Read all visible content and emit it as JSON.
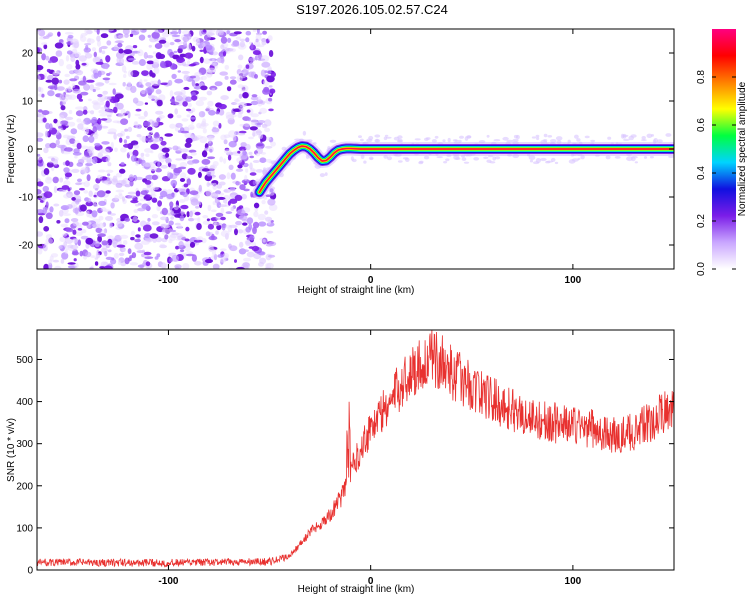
{
  "title": "S197.2026.105.02.57.C24",
  "chart_data": [
    {
      "type": "heatmap",
      "xlabel": "Height of straight line (km)",
      "ylabel": "Frequency (Hz)",
      "xlim": [
        -165,
        150
      ],
      "ylim": [
        -25,
        25
      ],
      "xticks": [
        -100,
        0,
        100
      ],
      "yticks": [
        -20,
        -10,
        0,
        10,
        20
      ],
      "grid": false,
      "noise_region_x": [
        -165,
        -50
      ],
      "ridge": {
        "x": [
          -55,
          -52,
          -48,
          -45,
          -42,
          -40,
          -38,
          -36,
          -34,
          -32,
          -30,
          -28,
          -26,
          -24,
          -22,
          -20,
          -18,
          -16,
          -14,
          -12,
          -10,
          -5,
          0,
          10,
          30,
          50,
          70,
          80,
          100,
          120,
          150
        ],
        "y": [
          -9,
          -7,
          -5,
          -3.5,
          -2,
          -1,
          -0.3,
          0.3,
          0.6,
          0.5,
          0,
          -0.8,
          -1.8,
          -2.5,
          -2.4,
          -1.7,
          -0.8,
          -0.2,
          0,
          0.1,
          0.1,
          0,
          0,
          0,
          0,
          0,
          0,
          0,
          0,
          0,
          0
        ]
      },
      "colorbar": {
        "label": "Normalized spectral amplitude",
        "ticks": [
          0.0,
          0.2,
          0.4,
          0.6,
          0.8
        ],
        "range": [
          0,
          1
        ],
        "colors": [
          "#ffffff",
          "#c9a6ff",
          "#7b1de8",
          "#1010e0",
          "#00d4ff",
          "#00ff40",
          "#ffff00",
          "#ff8000",
          "#ff0000",
          "#ff0080"
        ]
      }
    },
    {
      "type": "line",
      "xlabel": "Height of straight line (km)",
      "ylabel": "SNR (10 * v/v)",
      "xlim": [
        -165,
        150
      ],
      "ylim": [
        0,
        570
      ],
      "xticks": [
        -100,
        0,
        100
      ],
      "yticks": [
        0,
        100,
        200,
        300,
        400,
        500
      ],
      "grid": false,
      "series": [
        {
          "color": "#e8312f",
          "x": [
            -165,
            -150,
            -120,
            -100,
            -80,
            -60,
            -50,
            -45,
            -40,
            -35,
            -30,
            -25,
            -20,
            -15,
            -12,
            -10,
            -5,
            0,
            5,
            10,
            15,
            20,
            25,
            30,
            35,
            40,
            50,
            60,
            70,
            80,
            90,
            100,
            110,
            115,
            120,
            125,
            130,
            140,
            145,
            150
          ],
          "y": [
            18,
            18,
            17,
            17,
            18,
            19,
            20,
            25,
            35,
            60,
            90,
            110,
            130,
            170,
            200,
            230,
            290,
            340,
            370,
            400,
            440,
            470,
            490,
            500,
            495,
            470,
            435,
            405,
            380,
            360,
            350,
            345,
            335,
            325,
            318,
            320,
            330,
            355,
            375,
            395
          ]
        }
      ]
    }
  ]
}
